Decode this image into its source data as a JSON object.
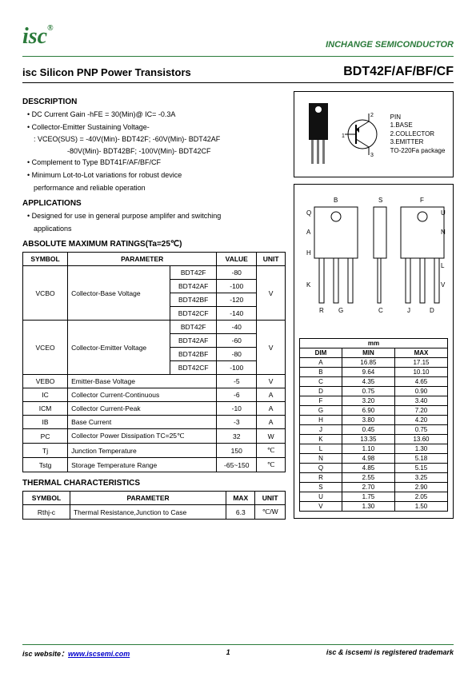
{
  "header": {
    "logo_text": "isc",
    "logo_reg": "®",
    "company": "INCHANGE SEMICONDUCTOR"
  },
  "title": {
    "left": "isc Silicon PNP Power Transistors",
    "right": "BDT42F/AF/BF/CF"
  },
  "description": {
    "heading": "DESCRIPTION",
    "b1": "DC Current Gain -hFE = 30(Min)@ IC= -0.3A",
    "b2": "Collector-Emitter Sustaining Voltage-",
    "b2a": ": VCEO(SUS) = -40V(Min)- BDT42F; -60V(Min)- BDT42AF",
    "b2b": "-80V(Min)- BDT42BF; -100V(Min)- BDT42CF",
    "b3": "Complement to Type BDT41F/AF/BF/CF",
    "b4": "Minimum Lot-to-Lot variations for robust device",
    "b4a": "performance and reliable operation"
  },
  "applications": {
    "heading": "APPLICATIONS",
    "b1": "Designed for use in general purpose amplifer and switching",
    "b1a": "applications"
  },
  "abs_max": {
    "heading": "ABSOLUTE MAXIMUM RATINGS(Ta=25℃)",
    "cols": {
      "symbol": "SYMBOL",
      "param": "PARAMETER",
      "value": "VALUE",
      "unit": "UNIT"
    },
    "vcbo": {
      "sym": "VCBO",
      "param": "Collector-Base Voltage",
      "parts": [
        "BDT42F",
        "BDT42AF",
        "BDT42BF",
        "BDT42CF"
      ],
      "vals": [
        "-80",
        "-100",
        "-120",
        "-140"
      ],
      "unit": "V"
    },
    "vceo": {
      "sym": "VCEO",
      "param": "Collector-Emitter Voltage",
      "parts": [
        "BDT42F",
        "BDT42AF",
        "BDT42BF",
        "BDT42CF"
      ],
      "vals": [
        "-40",
        "-60",
        "-80",
        "-100"
      ],
      "unit": "V"
    },
    "rows": [
      {
        "sym": "VEBO",
        "param": "Emitter-Base Voltage",
        "val": "-5",
        "unit": "V"
      },
      {
        "sym": "IC",
        "param": "Collector Current-Continuous",
        "val": "-6",
        "unit": "A"
      },
      {
        "sym": "ICM",
        "param": "Collector Current-Peak",
        "val": "-10",
        "unit": "A"
      },
      {
        "sym": "IB",
        "param": "Base Current",
        "val": "-3",
        "unit": "A"
      },
      {
        "sym": "PC",
        "param": "Collector Power Dissipation TC=25℃",
        "val": "32",
        "unit": "W"
      },
      {
        "sym": "Tj",
        "param": "Junction Temperature",
        "val": "150",
        "unit": "℃"
      },
      {
        "sym": "Tstg",
        "param": "Storage Temperature Range",
        "val": "-65~150",
        "unit": "℃"
      }
    ]
  },
  "thermal": {
    "heading": "THERMAL CHARACTERISTICS",
    "cols": {
      "symbol": "SYMBOL",
      "param": "PARAMETER",
      "max": "MAX",
      "unit": "UNIT"
    },
    "row": {
      "sym": "Rthj-c",
      "param": "Thermal Resistance,Junction to Case",
      "max": "6.3",
      "unit": "℃/W"
    }
  },
  "package": {
    "pin_label": "PIN",
    "pins": [
      "1 123",
      "1.BASE",
      "2.COLLECTOR",
      "3.EMITTER",
      "TO-220Fa package"
    ]
  },
  "dimensions": {
    "header_mm": "mm",
    "cols": {
      "dim": "DIM",
      "min": "MIN",
      "max": "MAX"
    },
    "rows": [
      [
        "A",
        "16.85",
        "17.15"
      ],
      [
        "B",
        "9.64",
        "10.10"
      ],
      [
        "C",
        "4.35",
        "4.65"
      ],
      [
        "D",
        "0.75",
        "0.90"
      ],
      [
        "F",
        "3.20",
        "3.40"
      ],
      [
        "G",
        "6.90",
        "7.20"
      ],
      [
        "H",
        "3.80",
        "4.20"
      ],
      [
        "J",
        "0.45",
        "0.75"
      ],
      [
        "K",
        "13.35",
        "13.60"
      ],
      [
        "L",
        "1.10",
        "1.30"
      ],
      [
        "N",
        "4.98",
        "5.18"
      ],
      [
        "Q",
        "4.85",
        "5.15"
      ],
      [
        "R",
        "2.55",
        "3.25"
      ],
      [
        "S",
        "2.70",
        "2.90"
      ],
      [
        "U",
        "1.75",
        "2.05"
      ],
      [
        "V",
        "1.30",
        "1.50"
      ]
    ]
  },
  "footer": {
    "left_label": "isc website：",
    "url": "www.iscsemi.com",
    "page": "1",
    "right": "isc & iscsemi is registered trademark"
  }
}
